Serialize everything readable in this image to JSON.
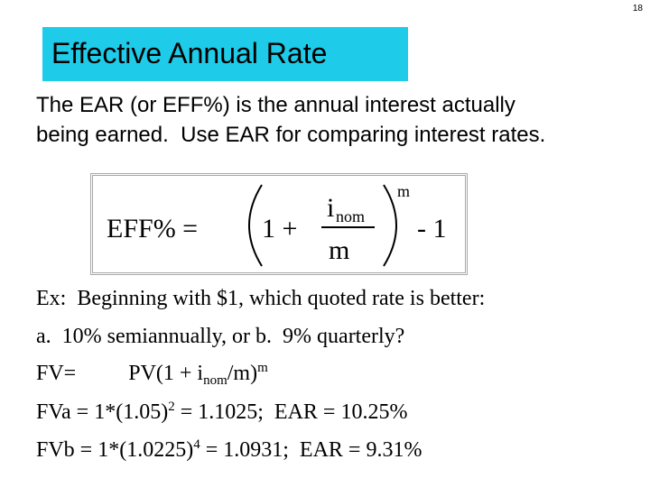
{
  "page_number": "18",
  "title": "Effective Annual Rate",
  "intro": [
    "The EAR (or EFF%) is the annual interest actually",
    "being earned.  Use EAR for comparing interest rates."
  ],
  "formula": {
    "lhs": "EFF% =",
    "inner": "1 +",
    "numerator": "i",
    "numerator_sub": "nom",
    "denominator": "m",
    "exponent": "m",
    "tail": "- 1"
  },
  "example": [
    [
      "Ex:  Beginning with $1, which quoted rate is better:"
    ],
    [
      "a.  10% semiannually, or b.  9% quarterly?"
    ],
    [
      "FV=",
      "PV(1 + i",
      "nom",
      "/m)",
      "m"
    ],
    [
      "FVa = 1*(1.05)",
      "2",
      " = 1.1025;  EAR = 10.25%"
    ],
    [
      "FVb = 1*(1.0225)",
      "4",
      " = 1.0931;  EAR = 9.31%"
    ]
  ]
}
